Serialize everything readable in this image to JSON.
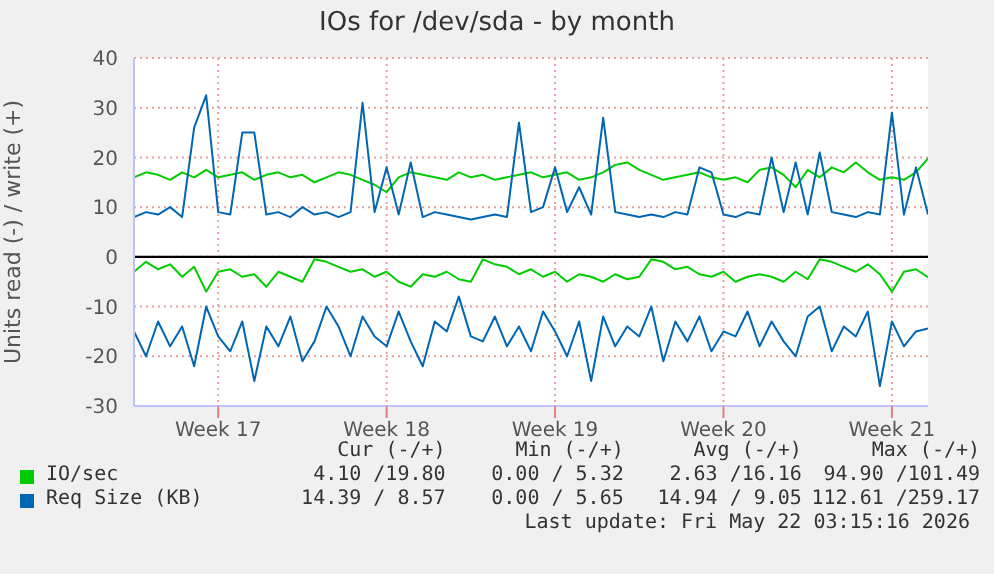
{
  "chart_data": {
    "type": "line",
    "title": "IOs for /dev/sda - by month",
    "ylabel": "Units read (-) / write (+)",
    "categories": [
      null,
      null,
      null,
      null,
      null,
      null,
      null,
      "Week 17",
      null,
      null,
      null,
      null,
      null,
      null,
      null,
      null,
      null,
      null,
      null,
      null,
      null,
      "Week 18",
      null,
      null,
      null,
      null,
      null,
      null,
      null,
      null,
      null,
      null,
      null,
      null,
      null,
      "Week 19",
      null,
      null,
      null,
      null,
      null,
      null,
      null,
      null,
      null,
      null,
      null,
      null,
      null,
      "Week 20",
      null,
      null,
      null,
      null,
      null,
      null,
      null,
      null,
      null,
      null,
      null,
      null,
      null,
      "Week 21",
      null,
      null,
      null
    ],
    "series": [
      {
        "name": "IO/sec",
        "color": "#00cc00",
        "values": [
          16,
          17,
          16.5,
          15.5,
          17,
          16,
          17.5,
          16,
          16.5,
          17,
          15.5,
          16.5,
          17,
          16,
          16.5,
          15,
          16,
          17,
          16.5,
          15.5,
          14.5,
          13,
          16,
          17,
          16.5,
          16,
          15.5,
          17,
          16,
          16.5,
          15.5,
          16,
          16.5,
          17,
          16,
          16.5,
          17,
          15.5,
          16,
          17,
          18.5,
          19,
          17.5,
          16.5,
          15.5,
          16,
          16.5,
          17,
          16,
          15.5,
          16,
          15,
          17.5,
          18,
          16.5,
          14,
          17.5,
          16,
          18,
          17,
          19,
          17,
          15.5,
          16,
          15.5,
          17,
          19.8
        ]
      },
      {
        "color": "#00cc00",
        "values": [
          -3,
          -1,
          -2.5,
          -1.5,
          -4,
          -2,
          -7,
          -3,
          -2.5,
          -4,
          -3.5,
          -6,
          -3,
          -4,
          -5,
          -0.5,
          -1,
          -2,
          -3,
          -2.5,
          -4,
          -3,
          -5,
          -6,
          -3.5,
          -4,
          -3,
          -4.5,
          -5,
          -0.5,
          -1.5,
          -2,
          -3.5,
          -2.5,
          -4,
          -3,
          -5,
          -3.5,
          -4,
          -5,
          -3.5,
          -4.5,
          -4,
          -0.5,
          -1,
          -2.5,
          -2,
          -3.5,
          -4,
          -3,
          -5,
          -4,
          -3.5,
          -4,
          -5,
          -3,
          -4.5,
          -0.5,
          -1,
          -2,
          -3,
          -1.5,
          -3.5,
          -7,
          -3,
          -2.5,
          -4.1
        ]
      },
      {
        "name": "Req Size (KB)",
        "color": "#0066b3",
        "values": [
          8,
          9,
          8.5,
          10,
          8,
          26,
          32.5,
          9,
          8.5,
          25,
          25,
          8.5,
          9,
          8,
          10,
          8.5,
          9,
          8,
          9,
          31,
          9,
          18,
          8.5,
          19,
          8,
          9,
          8.5,
          8,
          7.5,
          8,
          8.5,
          8,
          27,
          9,
          10,
          18,
          9,
          14,
          8.5,
          28,
          9,
          8.5,
          8,
          8.5,
          8,
          9,
          8.5,
          18,
          17,
          8.5,
          8,
          9,
          8.5,
          20,
          9,
          19,
          8.5,
          21,
          9,
          8.5,
          8,
          9,
          8.5,
          29,
          8.5,
          18,
          8.5
        ]
      },
      {
        "color": "#0066b3",
        "values": [
          -15,
          -20,
          -13,
          -18,
          -14,
          -22,
          -10,
          -16,
          -19,
          -13,
          -25,
          -14,
          -18,
          -12,
          -21,
          -17,
          -10,
          -14,
          -20,
          -12,
          -16,
          -18,
          -11,
          -17,
          -22,
          -13,
          -15,
          -8,
          -16,
          -17,
          -12,
          -18,
          -14,
          -19,
          -11,
          -15,
          -20,
          -13,
          -25,
          -12,
          -18,
          -14,
          -16,
          -10,
          -21,
          -13,
          -17,
          -12,
          -19,
          -15,
          -16,
          -11,
          -18,
          -13,
          -17,
          -20,
          -12,
          -10,
          -19,
          -14,
          -16,
          -11,
          -26,
          -13,
          -18,
          -15,
          -14.4
        ]
      }
    ],
    "ylim": [
      -30,
      40
    ],
    "yticks": [
      -30,
      -20,
      -10,
      0,
      10,
      20,
      30,
      40
    ],
    "ref_lines": [
      {
        "axis": "y",
        "value": 0,
        "color": "#000000"
      }
    ],
    "grid": true,
    "legend": "bottom",
    "marker": "none",
    "line_style": "solid",
    "annotations": [
      "Cur (-/+)",
      "Min (-/+)",
      "Avg (-/+)",
      "Max (-/+)",
      "4.10 /19.80",
      "0.00 / 5.32",
      "2.63 /16.16",
      "94.90 /101.49",
      "14.39 / 8.57",
      "0.00 / 5.65",
      "14.94 / 9.05",
      "112.61 /259.17",
      "Last update: Fri May 22 03:15:16 2026"
    ]
  }
}
